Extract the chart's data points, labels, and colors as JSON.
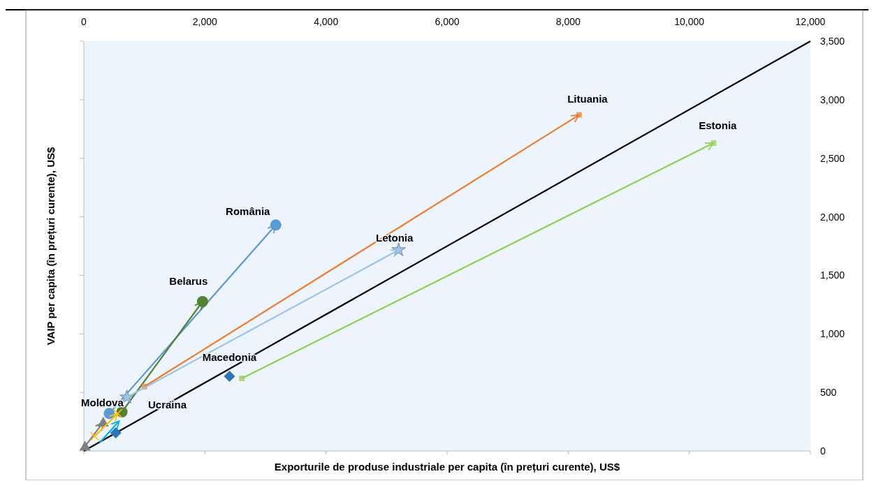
{
  "chart_data": {
    "type": "line",
    "xlabel": "Exporturile de produse industriale per capita (în prețuri curente), US$",
    "ylabel": "VAIP per capita (în prețuri curente), US$",
    "xlim": [
      0,
      12000
    ],
    "xticks": [
      0,
      {
        "value": 2000,
        "label": "2,000"
      },
      {
        "value": 4000,
        "label": "4,000"
      },
      {
        "value": 6000,
        "label": "6,000"
      },
      {
        "value": 8000,
        "label": "8,000"
      },
      {
        "value": 10000,
        "label": "10,000"
      },
      {
        "value": 12000,
        "label": "12,000"
      }
    ],
    "ylim": [
      0,
      3500
    ],
    "yticks": [
      0,
      500,
      {
        "value": 1000,
        "label": "1,000"
      },
      {
        "value": 1500,
        "label": "1,500"
      },
      {
        "value": 2000,
        "label": "2,000"
      },
      {
        "value": 2500,
        "label": "2,500"
      },
      {
        "value": 3000,
        "label": "3,000"
      },
      {
        "value": 3500,
        "label": "3,500"
      }
    ],
    "series": [
      {
        "color": "#000000",
        "marker": "none",
        "x": [
          0,
          12000
        ],
        "values": [
          0,
          3500
        ]
      },
      {
        "color": "#5b9bd5",
        "marker": "circle",
        "x": [
          420,
          3170
        ],
        "values": [
          320,
          1930
        ]
      },
      {
        "color": "#548235",
        "marker": "circle",
        "x": [
          630,
          1960
        ],
        "values": [
          334,
          1276
        ]
      },
      {
        "color": "#ed7d31",
        "marker": "square",
        "x": [
          1000,
          8180
        ],
        "values": [
          550,
          2870
        ]
      },
      {
        "color": "#9dc3e6",
        "marker": "star",
        "x": [
          710,
          5200
        ],
        "values": [
          459,
          1717
        ]
      },
      {
        "color": "#92d050",
        "marker": "square",
        "x": [
          2610,
          10400
        ],
        "values": [
          620,
          2630
        ]
      },
      {
        "type": "scatter",
        "color": "#2e75b6",
        "marker": "diamond",
        "x": [
          527,
          2405
        ],
        "values": [
          155,
          638
        ]
      },
      {
        "color": "#00b0f0",
        "marker": "none",
        "x": [
          263,
          584
        ],
        "values": [
          72,
          256
        ]
      },
      {
        "color": "#808080",
        "marker": "triangle",
        "x": [
          20,
          320
        ],
        "values": [
          40,
          245
        ]
      },
      {
        "color": "#ffc000",
        "marker": "cross",
        "x": [
          180,
          560
        ],
        "values": [
          125,
          320
        ]
      }
    ],
    "annotations": [
      {
        "text": "România",
        "x": 3170,
        "y": 1930
      },
      {
        "text": "Belarus",
        "x": 1960,
        "y": 1276
      },
      {
        "text": "Lituania",
        "x": 8180,
        "y": 2870
      },
      {
        "text": "Letonia",
        "x": 5200,
        "y": 1717
      },
      {
        "text": "Estonia",
        "x": 10400,
        "y": 2630
      },
      {
        "text": "Macedonia",
        "x": 2405,
        "y": 638
      },
      {
        "text": "Ucraina",
        "x": 710,
        "y": 459
      },
      {
        "text": "Moldova",
        "x": 420,
        "y": 320
      }
    ]
  }
}
